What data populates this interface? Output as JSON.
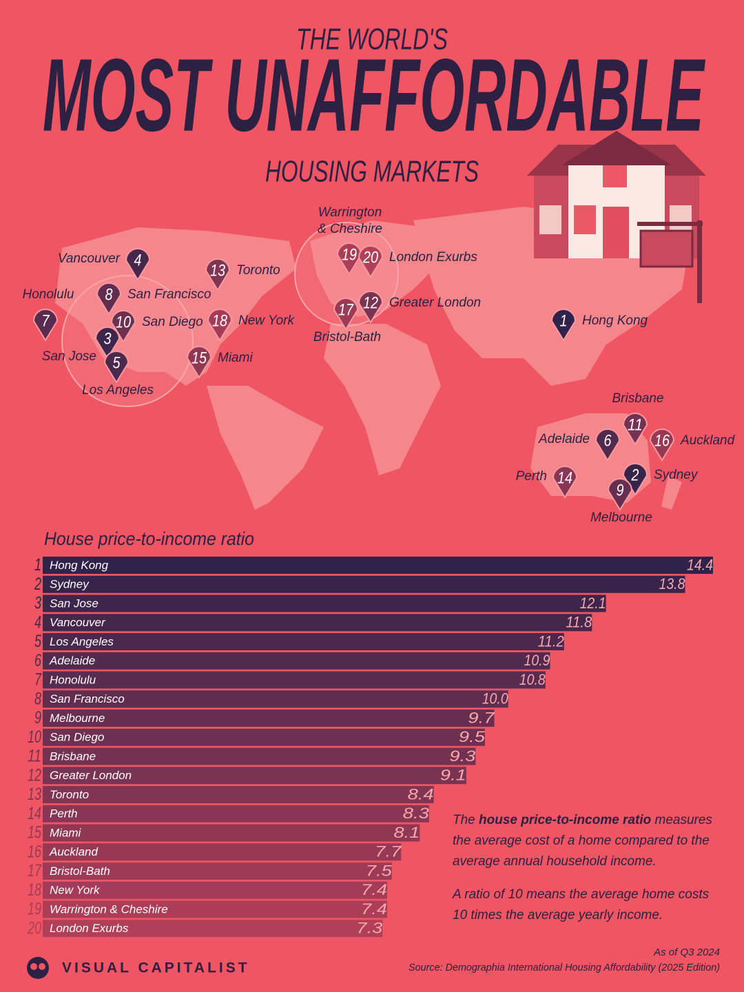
{
  "chart_data": {
    "type": "bar",
    "orientation": "horizontal",
    "title_top": "THE WORLD'S",
    "title": "MOST UNAFFORDABLE",
    "title_bottom": "HOUSING MARKETS",
    "axis_label": "House price-to-income ratio",
    "ranks": [
      1,
      2,
      3,
      4,
      5,
      6,
      7,
      8,
      9,
      10,
      11,
      12,
      13,
      14,
      15,
      16,
      17,
      18,
      19,
      20
    ],
    "categories": [
      "Hong Kong",
      "Sydney",
      "San Jose",
      "Vancouver",
      "Los Angeles",
      "Adelaide",
      "Honolulu",
      "San Francisco",
      "Melbourne",
      "San Diego",
      "Brisbane",
      "Greater London",
      "Toronto",
      "Perth",
      "Miami",
      "Auckland",
      "Bristol-Bath",
      "New York",
      "Warrington & Cheshire",
      "London Exurbs"
    ],
    "values": [
      14.4,
      13.8,
      12.1,
      11.8,
      11.2,
      10.9,
      10.8,
      10.0,
      9.7,
      9.5,
      9.3,
      9.1,
      8.4,
      8.3,
      8.1,
      7.7,
      7.5,
      7.4,
      7.4,
      7.3
    ],
    "value_labels": [
      "14.4",
      "13.8",
      "12.1",
      "11.8",
      "11.2",
      "10.9",
      "10.8",
      "10.0",
      "9.7",
      "9.5",
      "9.3",
      "9.1",
      "8.4",
      "8.3",
      "8.1",
      "7.7",
      "7.5",
      "7.4",
      "7.4",
      "7.3"
    ],
    "xlim": [
      0,
      14.4
    ],
    "colors": [
      "#30224a",
      "#b23f58"
    ]
  },
  "map": {
    "pins": [
      {
        "rank": 4,
        "lines": [
          "Vancouver"
        ]
      },
      {
        "rank": 13,
        "lines": [
          "Toronto"
        ]
      },
      {
        "rank": 7,
        "lines": [
          "Honolulu"
        ]
      },
      {
        "rank": 8,
        "lines": [
          "San Francisco"
        ]
      },
      {
        "rank": 10,
        "lines": [
          "San Diego"
        ]
      },
      {
        "rank": 3,
        "lines": [
          "San Jose"
        ]
      },
      {
        "rank": 5,
        "lines": [
          "Los Angeles"
        ]
      },
      {
        "rank": 18,
        "lines": [
          "New York"
        ]
      },
      {
        "rank": 15,
        "lines": [
          "Miami"
        ]
      },
      {
        "rank": 19,
        "lines": [
          "Warrington",
          "& Cheshire"
        ]
      },
      {
        "rank": 20,
        "lines": [
          "London Exurbs"
        ]
      },
      {
        "rank": 17,
        "lines": [
          "Bristol-Bath"
        ]
      },
      {
        "rank": 12,
        "lines": [
          "Greater London"
        ]
      },
      {
        "rank": 1,
        "lines": [
          "Hong Kong"
        ]
      },
      {
        "rank": 11,
        "lines": [
          "Brisbane"
        ]
      },
      {
        "rank": 6,
        "lines": [
          "Adelaide"
        ]
      },
      {
        "rank": 16,
        "lines": [
          "Auckland"
        ]
      },
      {
        "rank": 14,
        "lines": [
          "Perth"
        ]
      },
      {
        "rank": 2,
        "lines": [
          "Sydney"
        ]
      },
      {
        "rank": 9,
        "lines": [
          "Melbourne"
        ]
      }
    ]
  },
  "note": {
    "p1": [
      "The ",
      "house price-to-income ratio",
      " measures the average cost of a home compared to the average annual household income."
    ],
    "p2": "A ratio of 10 means the average home costs 10 times the average yearly income."
  },
  "footer": {
    "date": "As of Q3 2024",
    "source": "Source: Demographia International Housing Affordability (2025 Edition)",
    "brand": "VISUAL CAPITALIST"
  }
}
